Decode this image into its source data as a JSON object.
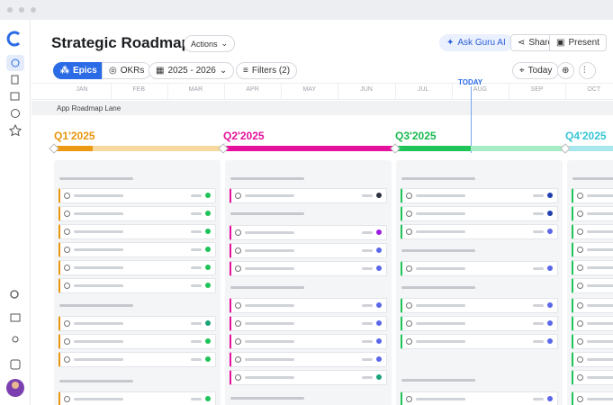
{
  "header": {
    "title": "Strategic Roadmap",
    "actions": "Actions",
    "ask_ai": "Ask Guru AI",
    "share": "Share",
    "present": "Present"
  },
  "toolbar": {
    "epics": "Epics",
    "okrs": "OKRs",
    "range": "2025 - 2026",
    "filters": "Filters (2)",
    "today": "Today"
  },
  "timeline": {
    "months": [
      "JAN",
      "FEB",
      "MAR",
      "APR",
      "MAY",
      "JUN",
      "JUL",
      "AUG",
      "SEP",
      "OCT"
    ],
    "today_marker": "TODAY",
    "lane": "App Roadmap Lane",
    "quarters": [
      "Q1'2025",
      "Q2'2025",
      "Q3'2025",
      "Q4'2025"
    ]
  }
}
